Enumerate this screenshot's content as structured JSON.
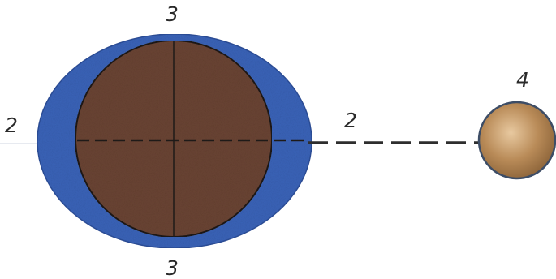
{
  "labels": {
    "top_ocean": "3",
    "bottom_ocean": "3",
    "left_side": "2",
    "right_side": "2",
    "moon": "4"
  },
  "colors": {
    "ocean": "#3a63b8",
    "earth": "#6a4433",
    "moon": "#b88b55",
    "line": "#2a2a2a"
  },
  "icons": {
    "earth": "earth-core",
    "ocean": "water-envelope",
    "moon": "moon-sphere"
  }
}
